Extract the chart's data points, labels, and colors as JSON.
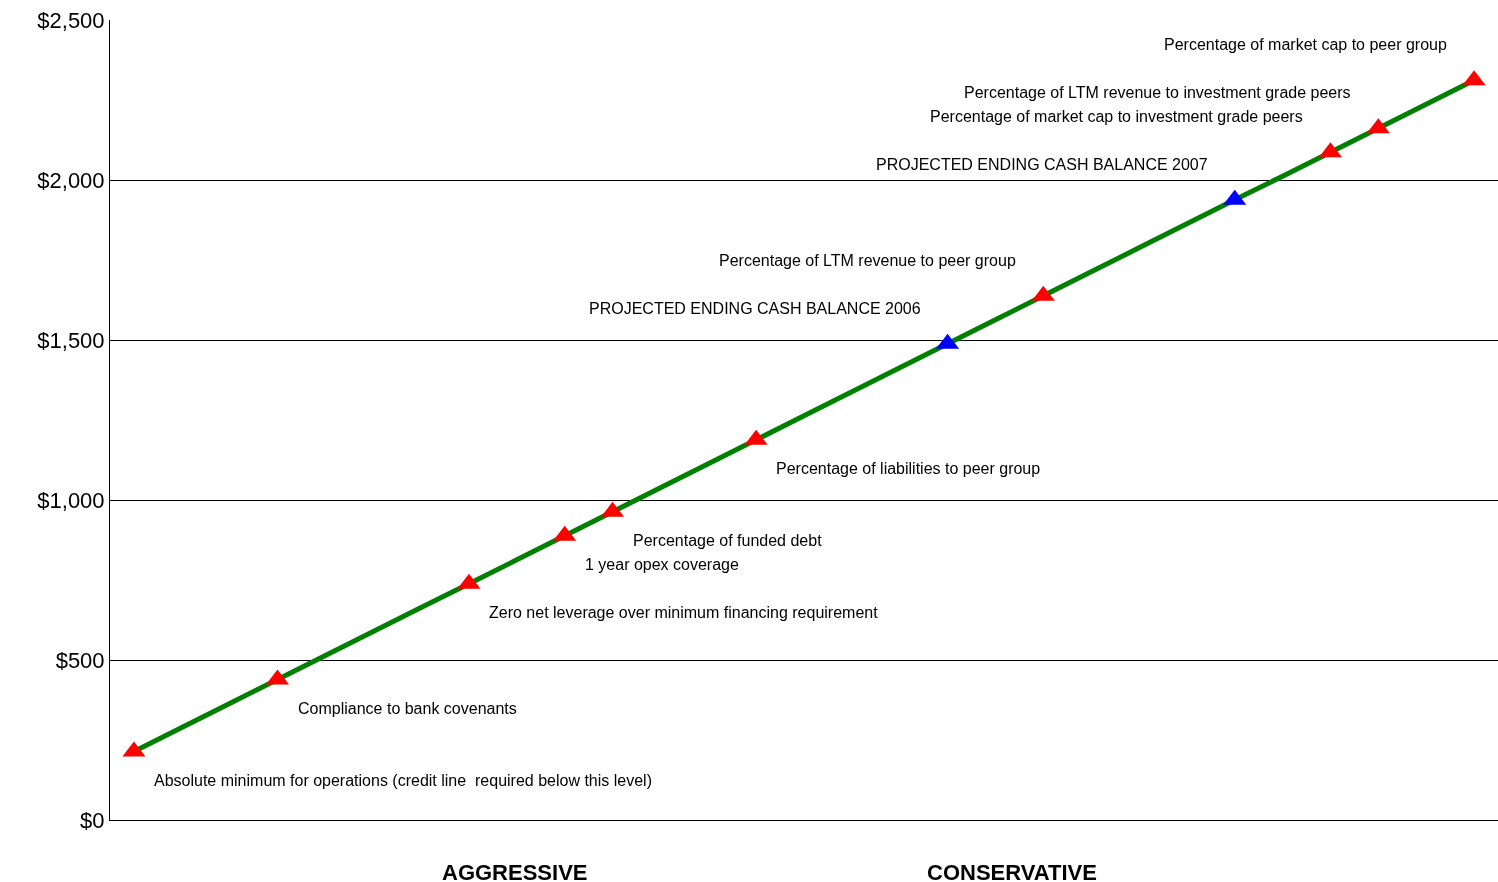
{
  "chart_data": {
    "type": "line",
    "categories": [
      null,
      null,
      null,
      null,
      null,
      null,
      null,
      null,
      null,
      null,
      null,
      null,
      null,
      null,
      null,
      null,
      null,
      null,
      null,
      null,
      null,
      null,
      null,
      null,
      null,
      null,
      null,
      null,
      null
    ],
    "series": [
      {
        "color": "#008000",
        "values": [
          214,
          289,
          364,
          439,
          514,
          589,
          664,
          738,
          813,
          888,
          963,
          1038,
          1113,
          1188,
          1263,
          1338,
          1413,
          1488,
          1563,
          1638,
          1713,
          1788,
          1863,
          1938,
          2012,
          2087,
          2162,
          2237,
          2312
        ]
      },
      {
        "type": "scatter",
        "marker": "triangle",
        "colors": [
          "#ff0000",
          null,
          null,
          "#ff0000",
          null,
          null,
          null,
          "#ff0000",
          null,
          "#ff0000",
          "#ff0000",
          null,
          null,
          "#ff0000",
          null,
          null,
          null,
          "#0000ff",
          null,
          "#ff0000",
          null,
          null,
          null,
          "#0000ff",
          null,
          "#ff0000",
          "#ff0000",
          null,
          "#ff0000"
        ],
        "values": [
          214,
          null,
          null,
          439,
          null,
          null,
          null,
          738,
          null,
          888,
          963,
          null,
          null,
          1188,
          null,
          null,
          null,
          1488,
          null,
          1638,
          null,
          null,
          null,
          1938,
          null,
          2087,
          2162,
          null,
          2312
        ]
      }
    ],
    "ylim": [
      0,
      2500
    ],
    "yticks": [
      {
        "value": 0,
        "label": "$0"
      },
      {
        "value": 500,
        "label": "$500"
      },
      {
        "value": 1000,
        "label": "$1,000"
      },
      {
        "value": 1500,
        "label": "$1,500"
      },
      {
        "value": 2000,
        "label": "$2,000"
      },
      {
        "value": 2500,
        "label": "$2,500"
      }
    ],
    "grid": "y",
    "marker": "none",
    "line_style": "solid",
    "annotations": [
      "Absolute minimum for operations (credit line  required below this level)",
      "Compliance to bank covenants",
      "Zero net leverage over minimum financing requirement",
      "1 year opex coverage",
      "Percentage of funded debt",
      "Percentage of liabilities to peer group",
      "PROJECTED ENDING CASH BALANCE 2006",
      "Percentage of LTM revenue to peer group",
      "PROJECTED ENDING CASH BALANCE 2007",
      "Percentage of market cap to investment grade peers",
      "Percentage of LTM revenue to investment grade peers",
      "Percentage of market cap to peer group",
      "AGGRESSIVE",
      "CONSERVATIVE"
    ]
  }
}
